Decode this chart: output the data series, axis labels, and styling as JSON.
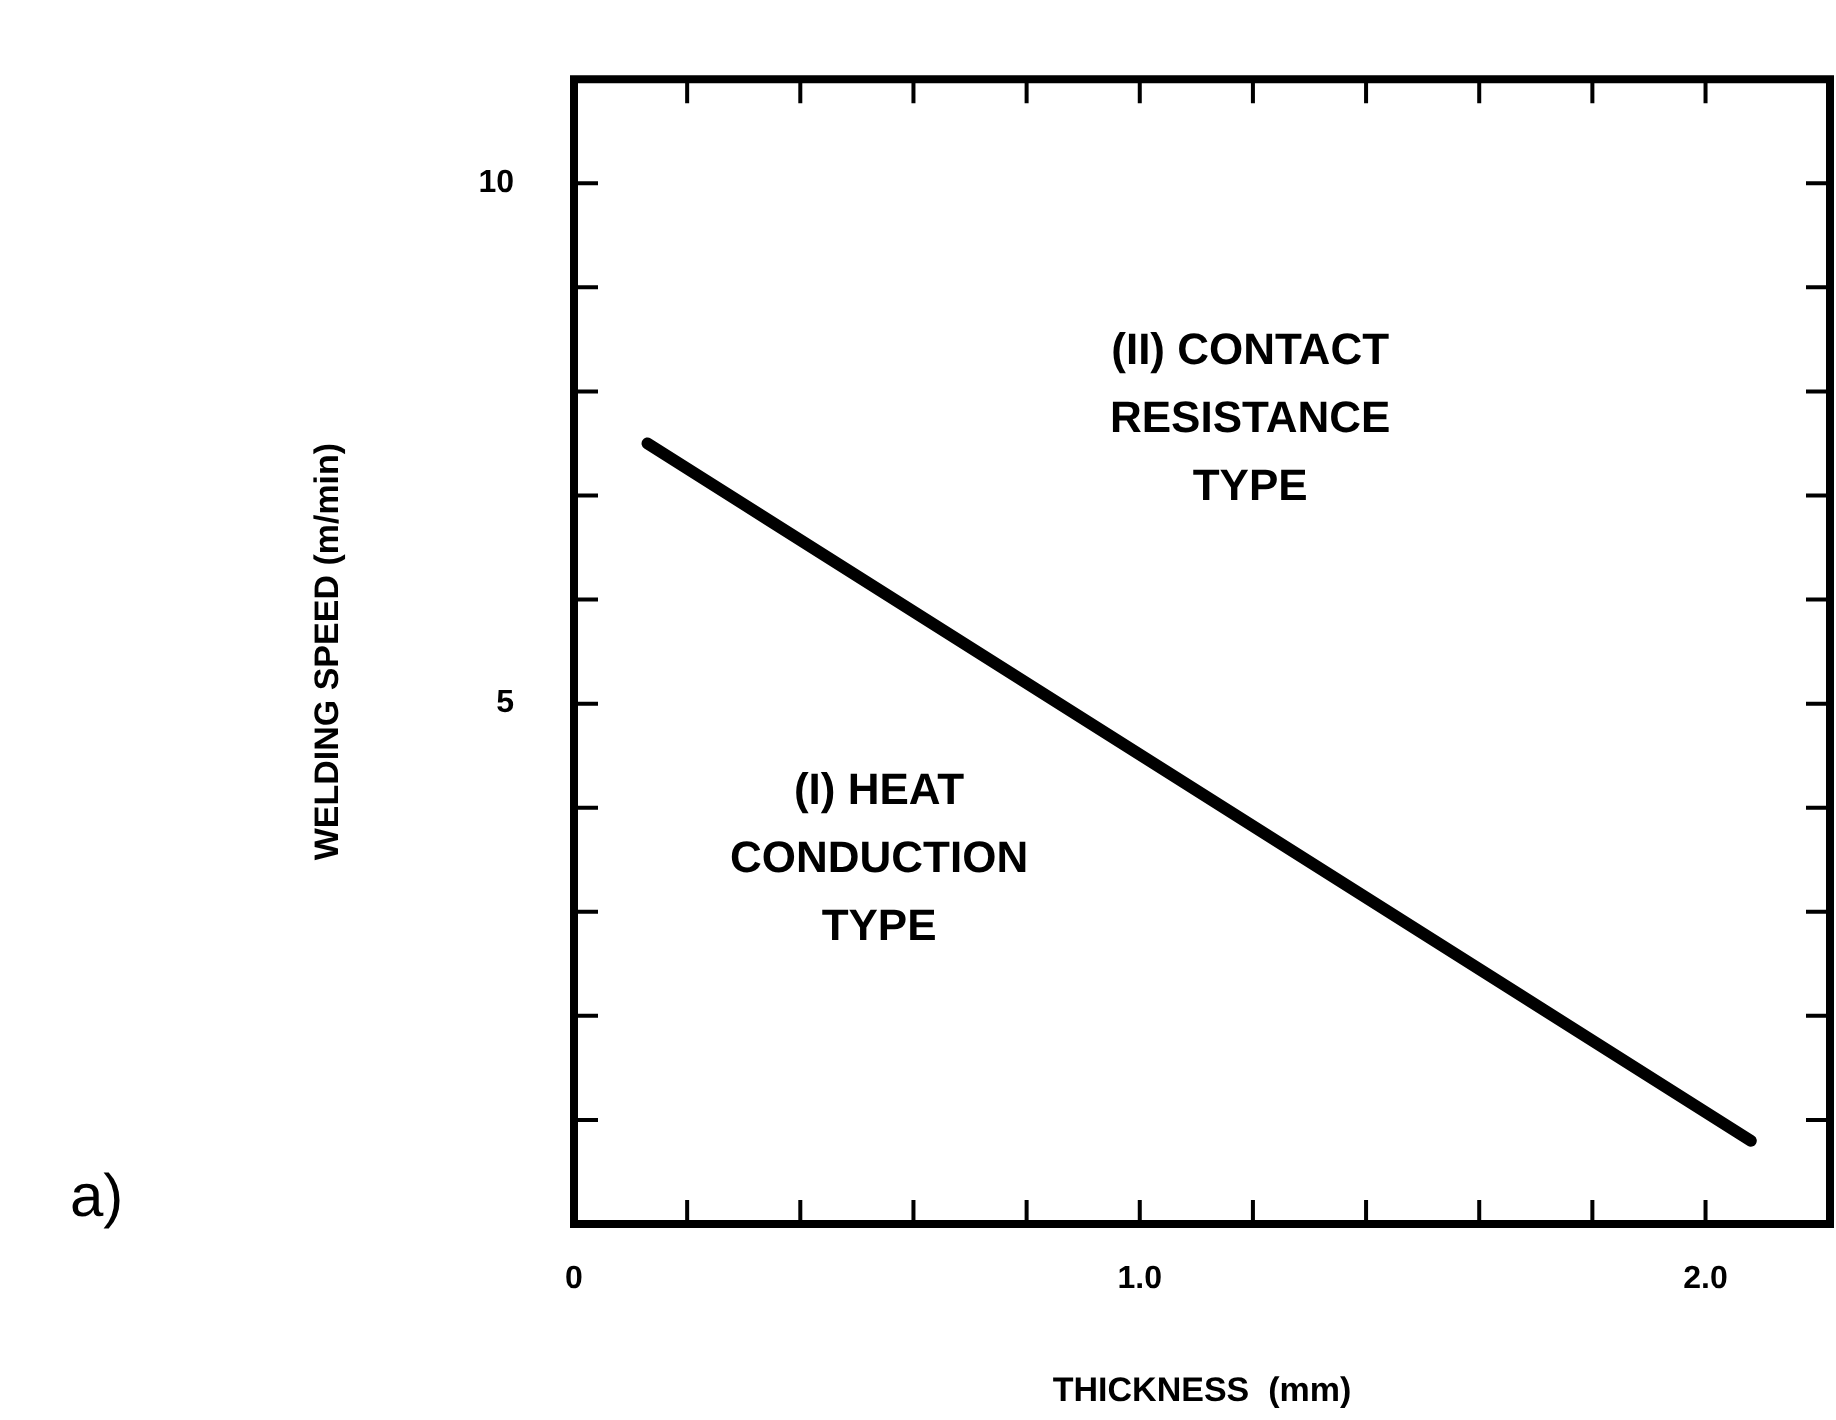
{
  "chart_data": {
    "type": "line",
    "xlabel": "THICKNESS  (mm)",
    "ylabel": "WELDING SPEED (m/min)",
    "series": [
      {
        "color": "#000000",
        "x": [
          0.13,
          2.08
        ],
        "values": [
          7.5,
          0.8
        ]
      }
    ],
    "xlim": [
      0,
      2.22
    ],
    "ylim": [
      0,
      11
    ],
    "xticks": [
      0,
      {
        "value": 0.2,
        "label": null
      },
      {
        "value": 0.4,
        "label": null
      },
      {
        "value": 0.6,
        "label": null
      },
      {
        "value": 0.8,
        "label": null
      },
      {
        "value": 1,
        "label": "1.0"
      },
      {
        "value": 1.2,
        "label": null
      },
      {
        "value": 1.4,
        "label": null
      },
      {
        "value": 1.6,
        "label": null
      },
      {
        "value": 1.8,
        "label": null
      },
      {
        "value": 2,
        "label": "2.0"
      }
    ],
    "yticks": [
      {
        "value": 1,
        "label": null
      },
      {
        "value": 2,
        "label": null
      },
      {
        "value": 3,
        "label": null
      },
      {
        "value": 4,
        "label": null
      },
      5,
      {
        "value": 6,
        "label": null
      },
      {
        "value": 7,
        "label": null
      },
      {
        "value": 8,
        "label": null
      },
      {
        "value": 9,
        "label": null
      },
      10
    ],
    "marker": "none",
    "line_style": "solid",
    "grid": false,
    "legend": false,
    "annotations": [
      "(II) CONTACT\nRESISTANCE\nTYPE",
      "(I) HEAT\nCONDUCTION\nTYPE",
      "a)"
    ]
  }
}
